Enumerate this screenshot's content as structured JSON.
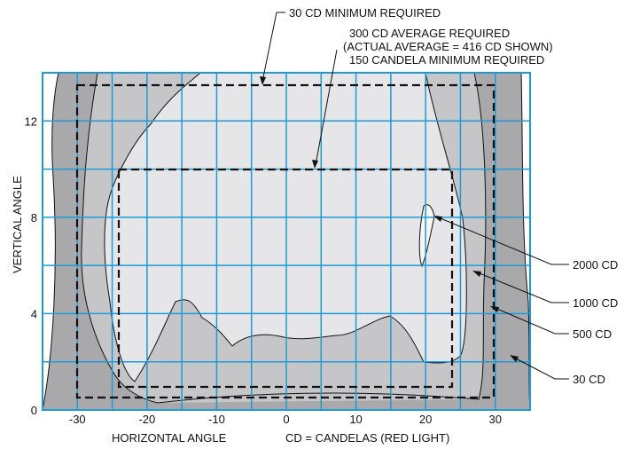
{
  "title_callouts": {
    "min30": "30 CD MINIMUM REQUIRED",
    "avg300": "300 CD AVERAGE REQUIRED",
    "actual": "(ACTUAL AVERAGE = 416 CD SHOWN)",
    "min150": "150 CANDELA MINIMUM REQUIRED"
  },
  "contour_labels": {
    "c2000": "2000 CD",
    "c1000": "1000 CD",
    "c500": "500 CD",
    "c30": "30 CD"
  },
  "axes": {
    "xlabel": "HORIZONTAL ANGLE",
    "ylabel": "VERTICAL ANGLE",
    "units_note": "CD = CANDELAS (RED LIGHT)",
    "x_ticks": [
      "-30",
      "-20",
      "-10",
      "0",
      "10",
      "20",
      "30"
    ],
    "y_ticks": [
      "0",
      "4",
      "8",
      "12"
    ],
    "x_range": [
      -35,
      35
    ],
    "y_range": [
      0,
      14
    ]
  },
  "regions": {
    "minimum_30cd": {
      "h_range": [
        -30,
        30
      ],
      "v_range": [
        0.5,
        13.5
      ]
    },
    "minimum_150cd": {
      "h_range": [
        -24,
        24
      ],
      "v_range": [
        1,
        10
      ]
    }
  },
  "colors": {
    "grid": "#1e9ad6",
    "zone_30": "#a9a9ab",
    "zone_500": "#c6c6c8",
    "zone_1000": "#e6e6e8",
    "zone_2000": "#f6f6f7",
    "dashes": "#111111"
  }
}
